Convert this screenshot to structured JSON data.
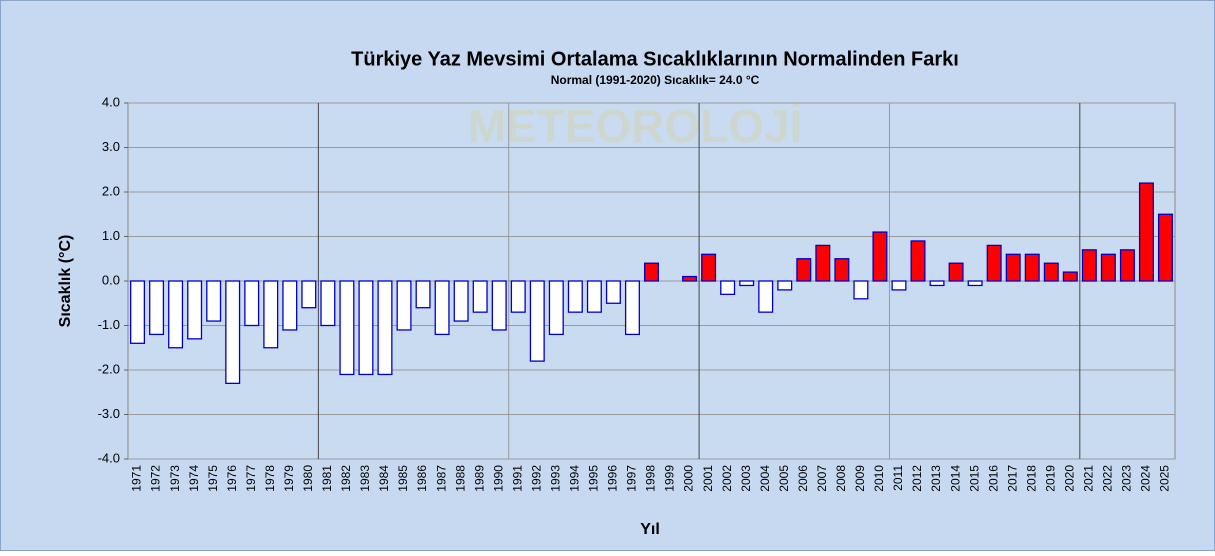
{
  "chart_data": {
    "type": "bar",
    "title": "Türkiye Yaz Mevsimi Ortalama Sıcaklıklarının Normalinden Farkı",
    "subtitle": "Normal (1991-2020) Sıcaklık= 24.0 °C",
    "watermark": "METEOROLOJİ",
    "x_label": "Yıl",
    "y_label": "Sıcaklık (°C)",
    "categories": [
      "1971",
      "1972",
      "1973",
      "1974",
      "1975",
      "1976",
      "1977",
      "1978",
      "1979",
      "1980",
      "1981",
      "1982",
      "1983",
      "1984",
      "1985",
      "1986",
      "1987",
      "1988",
      "1989",
      "1990",
      "1991",
      "1992",
      "1993",
      "1994",
      "1995",
      "1996",
      "1997",
      "1998",
      "1999",
      "2000",
      "2001",
      "2002",
      "2003",
      "2004",
      "2005",
      "2006",
      "2007",
      "2008",
      "2009",
      "2010",
      "2011",
      "2012",
      "2013",
      "2014",
      "2015",
      "2016",
      "2017",
      "2018",
      "2019",
      "2020",
      "2021",
      "2022",
      "2023",
      "2024",
      "2025"
    ],
    "values": [
      -1.4,
      -1.2,
      -1.5,
      -1.3,
      -0.9,
      -2.3,
      -1.0,
      -1.5,
      -1.1,
      -0.6,
      -1.0,
      -2.1,
      -2.1,
      -2.1,
      -1.1,
      -0.6,
      -1.2,
      -0.9,
      -0.7,
      -1.1,
      -0.7,
      -1.8,
      -1.2,
      -0.7,
      -0.7,
      -0.5,
      -1.2,
      0.4,
      0.0,
      0.1,
      0.6,
      -0.3,
      -0.1,
      -0.7,
      -0.2,
      0.5,
      0.8,
      0.5,
      -0.4,
      1.1,
      -0.2,
      0.9,
      -0.1,
      0.4,
      -0.1,
      0.8,
      0.6,
      0.6,
      0.4,
      0.2,
      0.7,
      0.6,
      0.7,
      2.2,
      1.5
    ],
    "color_positive": "#ff0000",
    "color_negative": "#ffffff",
    "edge_color": "#0000cc",
    "ylim": [
      -4,
      4
    ],
    "yticks": [
      {
        "value": -4,
        "label": "-4.0"
      },
      {
        "value": -3,
        "label": "-3.0"
      },
      {
        "value": -2,
        "label": "-2.0"
      },
      {
        "value": -1,
        "label": "-1.0"
      },
      {
        "value": 0,
        "label": "0.0"
      },
      {
        "value": 1,
        "label": "1.0"
      },
      {
        "value": 2,
        "label": "2.0"
      },
      {
        "value": 3,
        "label": "3.0"
      },
      {
        "value": 4,
        "label": "4.0"
      }
    ],
    "grid": true
  }
}
